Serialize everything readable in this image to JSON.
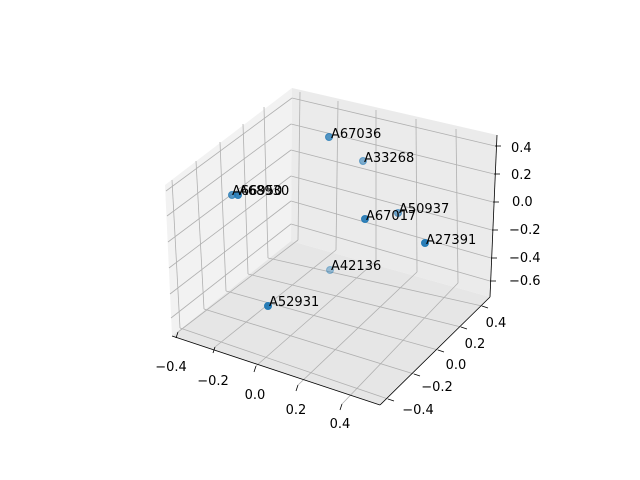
{
  "chart_data": {
    "type": "scatter",
    "projection": "3d",
    "title": "",
    "xlabel": "",
    "ylabel": "",
    "zlabel": "",
    "grid": true,
    "point_color": "#1f77b4",
    "pane_colors": [
      "#f2f2f2",
      "#e6e6e6",
      "#ebebeb"
    ],
    "axes": {
      "x": {
        "ticks": [
          -0.4,
          -0.2,
          0.0,
          0.2,
          0.4
        ],
        "tick_labels": [
          "−0.4",
          "−0.2",
          "0.0",
          "0.2",
          "0.4"
        ]
      },
      "y": {
        "ticks": [
          -0.4,
          -0.2,
          0.0,
          0.2,
          0.4
        ],
        "tick_labels": [
          "−0.4",
          "−0.2",
          "0.0",
          "0.2",
          "0.4"
        ]
      },
      "z": {
        "ticks": [
          -0.6,
          -0.4,
          -0.2,
          0.0,
          0.2,
          0.4
        ],
        "tick_labels": [
          "−0.6",
          "−0.4",
          "−0.2",
          "0.0",
          "0.2",
          "0.4"
        ]
      }
    },
    "points": [
      {
        "label": "A67036",
        "alpha": 0.75
      },
      {
        "label": "A33268",
        "alpha": 0.55
      },
      {
        "label": "A66950",
        "alpha": 0.75
      },
      {
        "label": "A68930",
        "alpha": 0.9
      },
      {
        "label": "A50937",
        "alpha": 0.6
      },
      {
        "label": "A67017",
        "alpha": 0.9
      },
      {
        "label": "A27391",
        "alpha": 0.95
      },
      {
        "label": "A42136",
        "alpha": 0.4
      },
      {
        "label": "A52931",
        "alpha": 0.95
      }
    ]
  }
}
